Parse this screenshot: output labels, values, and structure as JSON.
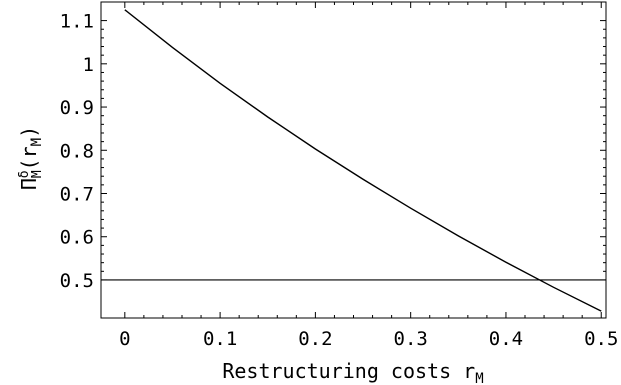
{
  "chart_data": {
    "type": "line",
    "title": "",
    "xlabel": "Restructuring costs r",
    "xlabel_sub": "M",
    "ylabel": "Π",
    "ylabel_sup": "δ",
    "ylabel_sub": "M",
    "ylabel_tail_open": "(r",
    "ylabel_tail_sub": "M",
    "ylabel_tail_close": ")",
    "xlim": [
      -0.025,
      0.505
    ],
    "ylim": [
      0.412,
      1.143
    ],
    "x_ticks": [
      "0",
      "0.1",
      "0.2",
      "0.3",
      "0.4",
      "0.5"
    ],
    "y_ticks": [
      "0.5",
      "0.6",
      "0.7",
      "0.8",
      "0.9",
      "1",
      "1.1"
    ],
    "grid": false,
    "series": [
      {
        "x": [
          0.0,
          0.05,
          0.1,
          0.15,
          0.2,
          0.25,
          0.3,
          0.35,
          0.4,
          0.45,
          0.5
        ],
        "y": [
          1.125,
          1.038,
          0.955,
          0.877,
          0.803,
          0.733,
          0.666,
          0.602,
          0.541,
          0.483,
          0.428
        ]
      }
    ],
    "reference_lines": [
      {
        "orientation": "horizontal",
        "y": 0.5
      }
    ]
  }
}
